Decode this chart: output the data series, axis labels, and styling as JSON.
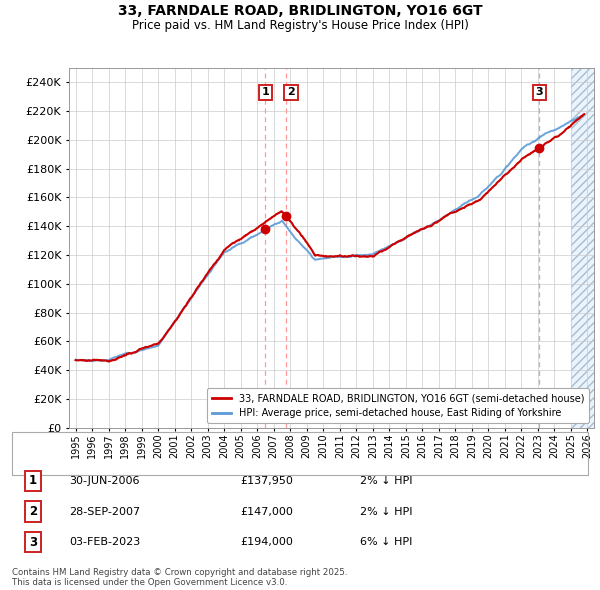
{
  "title": "33, FARNDALE ROAD, BRIDLINGTON, YO16 6GT",
  "subtitle": "Price paid vs. HM Land Registry's House Price Index (HPI)",
  "legend_line1": "33, FARNDALE ROAD, BRIDLINGTON, YO16 6GT (semi-detached house)",
  "legend_line2": "HPI: Average price, semi-detached house, East Riding of Yorkshire",
  "transactions": [
    {
      "num": 1,
      "date": "30-JUN-2006",
      "price": 137950,
      "pct": "2%",
      "dir": "↓"
    },
    {
      "num": 2,
      "date": "28-SEP-2007",
      "price": 147000,
      "pct": "2%",
      "dir": "↓"
    },
    {
      "num": 3,
      "date": "03-FEB-2023",
      "price": 194000,
      "pct": "6%",
      "dir": "↓"
    }
  ],
  "sale_dates_decimal": [
    2006.496,
    2007.742,
    2023.088
  ],
  "sale_prices": [
    137950,
    147000,
    194000
  ],
  "red_color": "#cc0000",
  "blue_color": "#5b9bd5",
  "grid_color": "#cccccc",
  "future_bg": "#ddeeff",
  "ylim": [
    0,
    250000
  ],
  "yticks": [
    0,
    20000,
    40000,
    60000,
    80000,
    100000,
    120000,
    140000,
    160000,
    180000,
    200000,
    220000,
    240000
  ],
  "xlim_start": 1994.6,
  "xlim_end": 2026.4,
  "future_start": 2025.0,
  "copyright": "Contains HM Land Registry data © Crown copyright and database right 2025.\nThis data is licensed under the Open Government Licence v3.0."
}
